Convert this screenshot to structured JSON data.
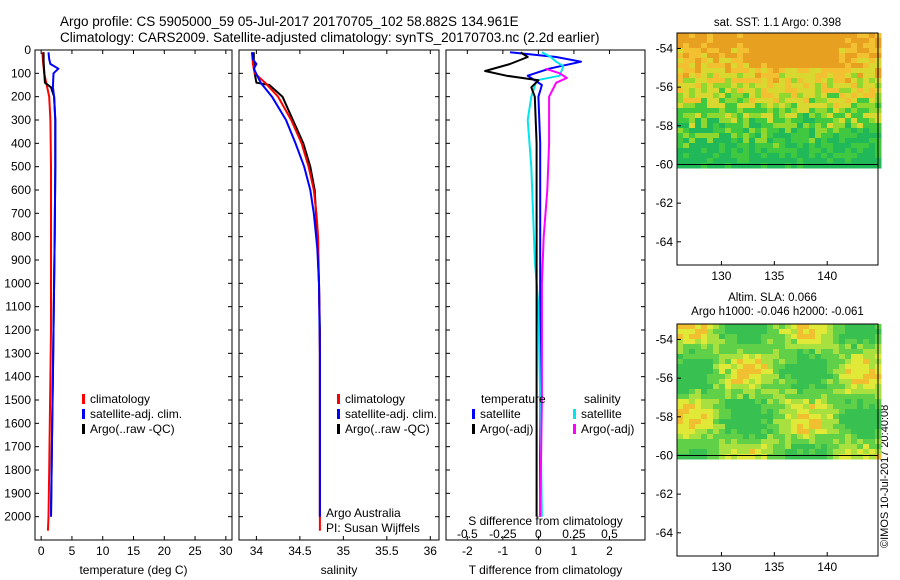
{
  "title_lines": [
    "Argo profile: CS 5905000_59 05-Jul-2017 20170705_102 58.882S 134.961E",
    "Climatology: CARS2009. Satellite-adjusted climatology: synTS_20170703.nc (2.2d earlier)"
  ],
  "side_text": "©IMOS 10-Jul-2017 20:40:08",
  "chart_data": [
    {
      "id": "temperature",
      "type": "line",
      "xlabel": "temperature (deg C)",
      "ylabel": "",
      "xlim": [
        -1,
        31
      ],
      "ylim": [
        2100,
        0
      ],
      "xticks": [
        0,
        5,
        10,
        15,
        20,
        25,
        30
      ],
      "yticks": [
        0,
        100,
        200,
        300,
        400,
        500,
        600,
        700,
        800,
        900,
        1000,
        1100,
        1200,
        1300,
        1400,
        1500,
        1600,
        1700,
        1800,
        1900,
        2000
      ],
      "legend": [
        "climatology",
        "satellite-adj. clim.",
        "Argo(..raw -QC)"
      ],
      "series": [
        {
          "name": "climatology",
          "color": "#ff0000",
          "x": [
            0.2,
            0.3,
            0.5,
            0.9,
            1.3,
            1.5,
            1.6,
            1.6,
            1.6,
            1.6,
            1.5,
            1.4,
            1.3,
            1.2,
            1.1
          ],
          "y": [
            10,
            50,
            100,
            150,
            200,
            300,
            500,
            800,
            1000,
            1200,
            1400,
            1600,
            1800,
            2000,
            2060
          ]
        },
        {
          "name": "Argo(..raw -QC)",
          "color": "#000000",
          "x": [
            0.4,
            0.4,
            0.5,
            0.6,
            1.6,
            2.1,
            2.3,
            2.3,
            2.2,
            2.1,
            2.0,
            1.9,
            1.8,
            1.7,
            1.6
          ],
          "y": [
            10,
            50,
            90,
            140,
            160,
            200,
            300,
            500,
            800,
            1000,
            1200,
            1400,
            1600,
            1800,
            2000
          ]
        },
        {
          "name": "satellite-adj. clim.",
          "color": "#0000ff",
          "x": [
            1.2,
            1.3,
            1.5,
            2.8,
            2.0,
            1.9,
            2.1,
            2.3,
            2.3,
            2.2,
            2.1,
            2.0,
            1.9,
            1.8,
            1.7,
            1.6
          ],
          "y": [
            10,
            40,
            60,
            80,
            100,
            160,
            200,
            300,
            500,
            800,
            1000,
            1200,
            1400,
            1600,
            1800,
            2000
          ]
        }
      ]
    },
    {
      "id": "salinity",
      "type": "line",
      "xlabel": "salinity",
      "ylabel": "",
      "xlim": [
        33.8,
        36.1
      ],
      "ylim": [
        2100,
        0
      ],
      "xticks": [
        34,
        34.5,
        35,
        35.5,
        36
      ],
      "legend": [
        "climatology",
        "satellite-adj. clim.",
        "Argo(..raw -QC)"
      ],
      "annotations": [
        "Argo Australia",
        "PI: Susan Wijffels"
      ],
      "series": [
        {
          "name": "Argo(..raw -QC)",
          "color": "#000000",
          "x": [
            33.97,
            33.97,
            33.98,
            34.0,
            34.15,
            34.3,
            34.42,
            34.54,
            34.62,
            34.67,
            34.7,
            34.72,
            34.73,
            34.73,
            34.73
          ],
          "y": [
            10,
            60,
            100,
            140,
            150,
            200,
            300,
            400,
            500,
            600,
            800,
            1000,
            1200,
            1500,
            2000
          ]
        },
        {
          "name": "climatology",
          "color": "#ff0000",
          "x": [
            33.95,
            33.96,
            33.98,
            34.1,
            34.25,
            34.4,
            34.52,
            34.6,
            34.66,
            34.69,
            34.71,
            34.72,
            34.73,
            34.73,
            34.73
          ],
          "y": [
            10,
            60,
            100,
            140,
            200,
            300,
            400,
            500,
            600,
            700,
            800,
            1000,
            1300,
            1600,
            2060
          ]
        },
        {
          "name": "satellite-adj. clim.",
          "color": "#0000ff",
          "x": [
            33.95,
            33.96,
            34.0,
            33.97,
            34.05,
            34.18,
            34.34,
            34.45,
            34.55,
            34.62,
            34.66,
            34.7,
            34.72,
            34.73,
            34.73
          ],
          "y": [
            10,
            40,
            60,
            80,
            140,
            200,
            300,
            400,
            500,
            600,
            700,
            850,
            1000,
            1300,
            2000
          ]
        }
      ]
    },
    {
      "id": "difference",
      "type": "line",
      "xlabel": "T difference from climatology",
      "x2label": "S difference from climatology",
      "xlim": [
        -2.6,
        3.0
      ],
      "ylim": [
        2100,
        0
      ],
      "xticks": [
        -2,
        -1,
        0,
        1,
        2
      ],
      "x2lim": [
        -0.65,
        0.75
      ],
      "x2ticks": [
        -0.5,
        -0.25,
        0,
        0.25,
        0.5
      ],
      "x2ticklabels": [
        "-0.5",
        "-0.25",
        "0",
        "0.25",
        "0.5"
      ],
      "legend_groups": [
        {
          "header": "temperature",
          "items": [
            "satellite",
            "Argo(-adj)"
          ]
        },
        {
          "header": "salinity",
          "items": [
            "satellite",
            "Argo(-adj)"
          ]
        }
      ],
      "series": [
        {
          "name": "temperature satellite",
          "color": "#0000ff",
          "x": [
            -0.8,
            0.5,
            1.2,
            0.3,
            -0.3,
            0.1,
            0.0,
            0.05,
            0.05,
            0.05,
            0.05
          ],
          "y": [
            10,
            30,
            50,
            80,
            110,
            150,
            200,
            400,
            800,
            1500,
            2000
          ]
        },
        {
          "name": "salinity satellite",
          "color": "#00e5ee",
          "x": [
            0.1,
            0.35,
            0.5,
            0.7,
            0.6,
            -0.05,
            -0.2,
            -0.3,
            -0.2,
            -0.15,
            -0.1,
            0.0,
            0.05,
            0.1
          ],
          "y": [
            10,
            30,
            50,
            70,
            110,
            130,
            200,
            300,
            500,
            700,
            900,
            1100,
            1500,
            2000
          ]
        },
        {
          "name": "salinity Argo(-adj)",
          "color": "#ff00ff",
          "x": [
            0.2,
            0.6,
            0.8,
            0.5,
            0.3,
            0.3,
            0.25,
            0.15,
            0.1,
            0.1,
            0.05
          ],
          "y": [
            80,
            100,
            120,
            140,
            200,
            400,
            600,
            800,
            1000,
            1500,
            2000
          ]
        },
        {
          "name": "temperature Argo(-adj)",
          "color": "#000000",
          "x": [
            -0.5,
            -0.3,
            -0.8,
            -1.5,
            -0.9,
            0.0,
            -0.2,
            -0.1,
            -0.05,
            -0.05,
            -0.05
          ],
          "y": [
            10,
            30,
            60,
            90,
            110,
            130,
            160,
            200,
            400,
            1000,
            2000
          ]
        }
      ]
    },
    {
      "id": "sst_map",
      "type": "heatmap",
      "title": "sat. SST: 1.1  Argo: 0.398",
      "xlim": [
        125.8,
        144.8
      ],
      "ylim": [
        -65.2,
        -53.2
      ],
      "xticks": [
        130,
        135,
        140
      ],
      "yticks": [
        -54,
        -56,
        -58,
        -60,
        -62,
        -64
      ],
      "data_extent_lat": [
        -60,
        -53.2
      ]
    },
    {
      "id": "sla_map",
      "type": "heatmap",
      "title_lines": [
        "Altim. SLA: 0.066",
        "Argo h1000: -0.046 h2000: -0.061"
      ],
      "xlim": [
        125.8,
        144.8
      ],
      "ylim": [
        -65.2,
        -53.2
      ],
      "xticks": [
        130,
        135,
        140
      ],
      "yticks": [
        -54,
        -56,
        -58,
        -60,
        -62,
        -64
      ],
      "data_extent_lat": [
        -60,
        -53.2
      ]
    }
  ]
}
